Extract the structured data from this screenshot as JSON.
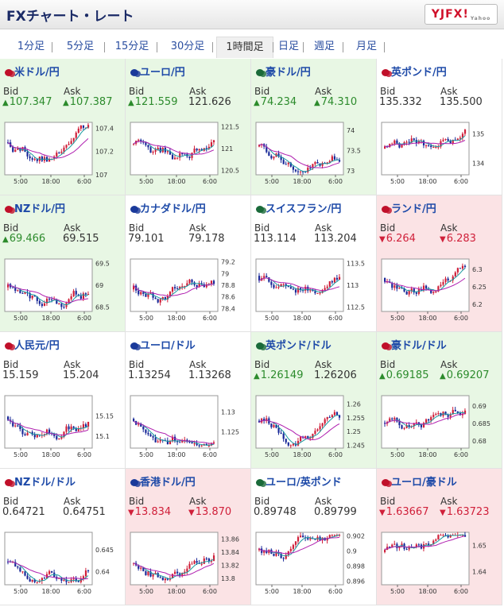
{
  "header": {
    "title": "FXチャート・レート",
    "logo": "YJFX!",
    "logo_sub": "Yahoo"
  },
  "tabs": [
    {
      "label": "1分足",
      "active": false
    },
    {
      "label": "5分足",
      "active": false
    },
    {
      "label": "15分足",
      "active": false
    },
    {
      "label": "30分足",
      "active": false
    },
    {
      "label": "1時間足",
      "active": true
    },
    {
      "label": "日足",
      "active": false
    },
    {
      "label": "週足",
      "active": false
    },
    {
      "label": "月足",
      "active": false
    }
  ],
  "labels": {
    "bid": "Bid",
    "ask": "Ask"
  },
  "colors": {
    "up": "#2c8b2c",
    "down": "#d0203a",
    "up_bg": "#e8f7e4",
    "down_bg": "#fbe3e5",
    "link": "#1e4aa8"
  },
  "pairs": [
    {
      "name": "米ドル/円",
      "flag": "us-jp-flag",
      "dir": "up",
      "bid": "107.347",
      "ask": "107.387",
      "bid_dir": "up",
      "ask_dir": "up",
      "ticks": [
        "107.4",
        "107.2",
        "107"
      ],
      "ymin": 107.0,
      "ymax": 107.45
    },
    {
      "name": "ユーロ/円",
      "flag": "eu-jp-flag",
      "dir": "up",
      "bid": "121.559",
      "ask": "121.626",
      "bid_dir": "up",
      "ask_dir": "none",
      "ticks": [
        "121.5",
        "121",
        "120.5"
      ],
      "ymin": 120.4,
      "ymax": 121.6
    },
    {
      "name": "豪ドル/円",
      "flag": "au-jp-flag",
      "dir": "up",
      "bid": "74.234",
      "ask": "74.310",
      "bid_dir": "up",
      "ask_dir": "up",
      "ticks": [
        "74",
        "73.5",
        "73"
      ],
      "ymin": 72.9,
      "ymax": 74.2
    },
    {
      "name": "英ポンド/円",
      "flag": "gb-jp-flag",
      "dir": "flat",
      "bid": "135.332",
      "ask": "135.500",
      "bid_dir": "none",
      "ask_dir": "none",
      "ticks": [
        "135",
        "134"
      ],
      "ymin": 133.6,
      "ymax": 135.4
    },
    {
      "name": "NZドル/円",
      "flag": "nz-jp-flag",
      "dir": "up",
      "bid": "69.466",
      "ask": "69.515",
      "bid_dir": "up",
      "ask_dir": "none",
      "ticks": [
        "69.5",
        "69",
        "68.5"
      ],
      "ymin": 68.4,
      "ymax": 69.6
    },
    {
      "name": "カナダドル/円",
      "flag": "ca-jp-flag",
      "dir": "flat",
      "bid": "79.101",
      "ask": "79.178",
      "bid_dir": "none",
      "ask_dir": "none",
      "ticks": [
        "79.2",
        "79",
        "78.8",
        "78.6",
        "78.4"
      ],
      "ymin": 78.35,
      "ymax": 79.25
    },
    {
      "name": "スイスフラン/円",
      "flag": "ch-jp-flag",
      "dir": "flat",
      "bid": "113.114",
      "ask": "113.204",
      "bid_dir": "none",
      "ask_dir": "none",
      "ticks": [
        "113.5",
        "113",
        "112.5"
      ],
      "ymin": 112.4,
      "ymax": 113.6
    },
    {
      "name": "ランド/円",
      "flag": "za-jp-flag",
      "dir": "down",
      "bid": "6.264",
      "ask": "6.283",
      "bid_dir": "down",
      "ask_dir": "down",
      "ticks": [
        "6.3",
        "6.25",
        "6.2"
      ],
      "ymin": 6.18,
      "ymax": 6.33
    },
    {
      "name": "人民元/円",
      "flag": "cn-jp-flag",
      "dir": "flat",
      "bid": "15.159",
      "ask": "15.204",
      "bid_dir": "none",
      "ask_dir": "none",
      "ticks": [
        "15.15",
        "15.1"
      ],
      "ymin": 15.07,
      "ymax": 15.2
    },
    {
      "name": "ユーロ/ドル",
      "flag": "eu-us-flag",
      "dir": "flat",
      "bid": "1.13254",
      "ask": "1.13268",
      "bid_dir": "none",
      "ask_dir": "none",
      "ticks": [
        "1.13",
        "1.125"
      ],
      "ymin": 1.121,
      "ymax": 1.134
    },
    {
      "name": "英ポンド/ドル",
      "flag": "gb-us-flag",
      "dir": "up",
      "bid": "1.26149",
      "ask": "1.26206",
      "bid_dir": "up",
      "ask_dir": "none",
      "ticks": [
        "1.26",
        "1.255",
        "1.25",
        "1.245"
      ],
      "ymin": 1.244,
      "ymax": 1.263
    },
    {
      "name": "豪ドル/ドル",
      "flag": "au-us-flag",
      "dir": "up",
      "bid": "0.69185",
      "ask": "0.69207",
      "bid_dir": "up",
      "ask_dir": "up",
      "ticks": [
        "0.69",
        "0.685",
        "0.68"
      ],
      "ymin": 0.678,
      "ymax": 0.693
    },
    {
      "name": "NZドル/ドル",
      "flag": "nz-us-flag",
      "dir": "flat",
      "bid": "0.64721",
      "ask": "0.64751",
      "bid_dir": "none",
      "ask_dir": "none",
      "ticks": [
        "0.645",
        "0.64"
      ],
      "ymin": 0.637,
      "ymax": 0.649
    },
    {
      "name": "香港ドル/円",
      "flag": "hk-jp-flag",
      "dir": "down",
      "bid": "13.834",
      "ask": "13.870",
      "bid_dir": "down",
      "ask_dir": "down",
      "ticks": [
        "13.86",
        "13.84",
        "13.82",
        "13.8"
      ],
      "ymin": 13.79,
      "ymax": 13.87
    },
    {
      "name": "ユーロ/英ポンド",
      "flag": "eu-gb-flag",
      "dir": "flat",
      "bid": "0.89748",
      "ask": "0.89799",
      "bid_dir": "none",
      "ask_dir": "none",
      "ticks": [
        "0.902",
        "0.9",
        "0.898",
        "0.896"
      ],
      "ymin": 0.8955,
      "ymax": 0.9025
    },
    {
      "name": "ユーロ/豪ドル",
      "flag": "eu-au-flag",
      "dir": "down",
      "bid": "1.63667",
      "ask": "1.63723",
      "bid_dir": "down",
      "ask_dir": "down",
      "ticks": [
        "1.65",
        "1.64"
      ],
      "ymin": 1.635,
      "ymax": 1.655
    }
  ],
  "xticks": [
    "5:00",
    "18:00",
    "6:00"
  ]
}
